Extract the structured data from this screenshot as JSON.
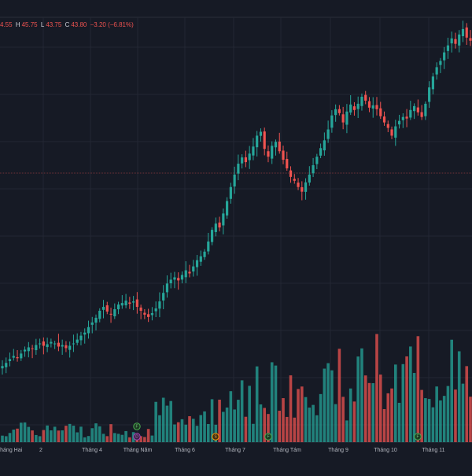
{
  "legend": {
    "open_partial": "4.55",
    "high_key": "H",
    "high": "45.75",
    "low_key": "L",
    "low": "43.75",
    "close_key": "C",
    "close": "43.80",
    "change": "−3.20 (−6.81%)"
  },
  "colors": {
    "background": "#161a25",
    "up": "#26a69a",
    "down": "#ef5350",
    "grid": "#232733",
    "price_line": "#ef5350"
  },
  "chart_data": {
    "type": "candlestick",
    "title": "",
    "xlabel": "",
    "ylabel": "",
    "x_tick_labels": [
      "Tháng Hai",
      "2",
      "Tháng 4",
      "Tháng Năm",
      "Tháng 6",
      "Tháng 7",
      "Tháng Tám",
      "Tháng 9",
      "Tháng 10",
      "Tháng 11"
    ],
    "event_badges": [
      {
        "label": "F",
        "kind": "earnings"
      },
      {
        "label": "D",
        "kind": "dividend"
      },
      {
        "label": "S",
        "kind": "split"
      },
      {
        "label": "F",
        "kind": "earnings"
      },
      {
        "label": "F",
        "kind": "earnings"
      }
    ],
    "grid": true,
    "close_values": [
      10.0,
      10.4,
      10.9,
      11.3,
      11.0,
      11.6,
      12.1,
      12.4,
      12.2,
      12.7,
      12.9,
      12.6,
      12.8,
      13.1,
      12.9,
      12.5,
      12.7,
      12.3,
      12.6,
      12.9,
      13.4,
      13.9,
      14.3,
      15.0,
      15.6,
      16.2,
      17.1,
      17.6,
      17.0,
      16.6,
      17.3,
      17.9,
      18.1,
      18.4,
      18.0,
      18.3,
      17.6,
      17.1,
      16.6,
      16.3,
      16.8,
      17.4,
      18.3,
      19.4,
      20.6,
      21.1,
      21.4,
      21.0,
      21.7,
      22.3,
      21.9,
      22.8,
      23.6,
      24.1,
      24.7,
      26.0,
      27.5,
      28.3,
      27.8,
      29.6,
      31.2,
      33.0,
      34.6,
      36.0,
      36.8,
      36.2,
      37.3,
      38.2,
      39.6,
      40.1,
      37.9,
      36.9,
      38.3,
      38.8,
      37.6,
      36.5,
      35.4,
      34.3,
      33.8,
      33.0,
      32.4,
      33.6,
      34.6,
      35.8,
      36.9,
      38.0,
      39.0,
      40.4,
      42.2,
      43.0,
      42.5,
      41.3,
      42.7,
      43.6,
      42.9,
      43.7,
      44.6,
      44.1,
      43.2,
      43.5,
      43.0,
      42.1,
      41.3,
      40.6,
      39.6,
      40.8,
      41.5,
      42.0,
      41.8,
      42.9,
      43.4,
      42.6,
      42.0,
      43.7,
      45.8,
      47.2,
      48.4,
      49.2,
      50.3,
      51.2,
      52.1,
      51.4,
      52.6,
      53.3,
      52.2,
      51.8
    ]
  }
}
